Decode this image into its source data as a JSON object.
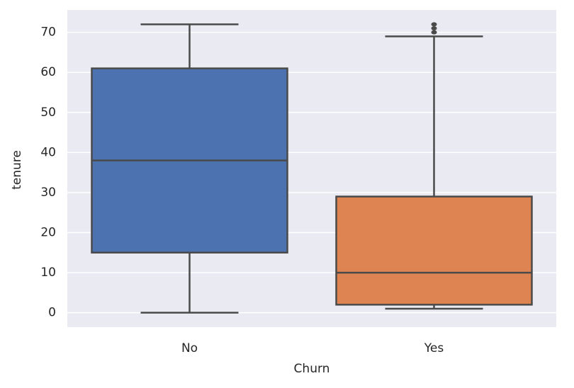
{
  "chart_data": {
    "type": "box",
    "xlabel": "Churn",
    "ylabel": "tenure",
    "categories": [
      "No",
      "Yes"
    ],
    "boxes": [
      {
        "min": 0,
        "q1": 15,
        "median": 38,
        "q3": 61,
        "max": 72,
        "outliers": [],
        "color": "#4c72b0"
      },
      {
        "min": 1,
        "q1": 2,
        "median": 10,
        "q3": 29,
        "max": 69,
        "outliers": [
          70,
          71,
          72
        ],
        "color": "#dd8452"
      }
    ],
    "ylim": [
      -3.6,
      75.6
    ],
    "yticks": [
      0,
      10,
      20,
      30,
      40,
      50,
      60,
      70
    ],
    "grid": true
  }
}
